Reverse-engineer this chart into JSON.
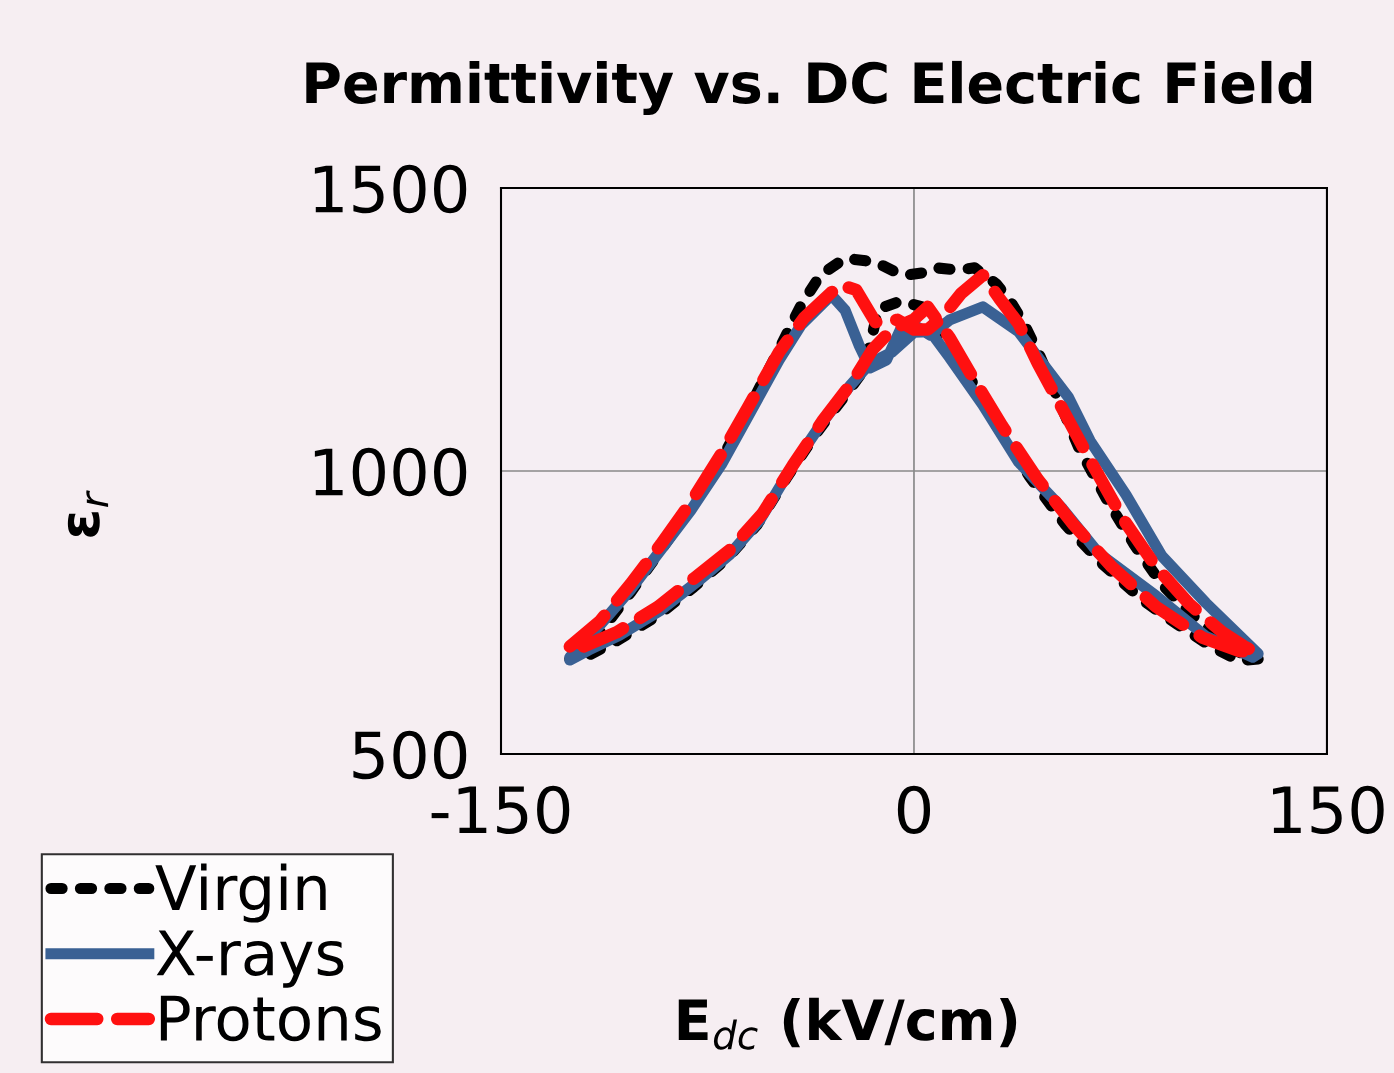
{
  "chart_data": {
    "type": "line",
    "title": "Permittivity vs. DC Electric Field",
    "xlabel": "E$_{dc}$ (kV/cm)",
    "ylabel": "ε$_{r}$",
    "xlim": [
      -150,
      150
    ],
    "xticks": [
      -150,
      0,
      150
    ],
    "ylim": [
      500,
      1500
    ],
    "yticks": [
      500,
      1000,
      1500
    ],
    "grid": true,
    "legend": "bottom left",
    "series": [
      {
        "name": "Virgin",
        "color": "#000000",
        "line_style": "dotted",
        "x": [
          -125,
          -114,
          -103,
          -92,
          -81,
          -70,
          -60,
          -49,
          -41,
          -34,
          -25,
          -14,
          -6,
          -3,
          3,
          8,
          16,
          22,
          30,
          35,
          40,
          46,
          53,
          60,
          70,
          80,
          90,
          100,
          110,
          118,
          125,
          118,
          108,
          96,
          83,
          68,
          55,
          42,
          30,
          22,
          15,
          8,
          3,
          -5,
          -13,
          -18,
          -24,
          -35,
          -46,
          -57,
          -68,
          -80,
          -93,
          -108,
          -120
        ],
        "values": [
          668,
          715,
          785,
          860,
          935,
          1020,
          1110,
          1215,
          1293,
          1346,
          1376,
          1369,
          1350,
          1346,
          1350,
          1359,
          1355,
          1359,
          1330,
          1300,
          1260,
          1200,
          1120,
          1040,
          950,
          870,
          800,
          750,
          710,
          680,
          668,
          665,
          690,
          728,
          772,
          838,
          905,
          990,
          1080,
          1150,
          1210,
          1250,
          1290,
          1300,
          1286,
          1180,
          1140,
          1070,
          990,
          905,
          845,
          795,
          745,
          700,
          670
        ]
      },
      {
        "name": "X-rays",
        "color": "#3a6194",
        "line_style": "solid",
        "x": [
          -125,
          -114,
          -103,
          -92,
          -81,
          -70,
          -60,
          -49,
          -41,
          -30,
          -25,
          -20,
          -16,
          -10,
          -5,
          0,
          6,
          13,
          25,
          38,
          56,
          64,
          77,
          90,
          106,
          125,
          123,
          106,
          88,
          67,
          54,
          38,
          25,
          13,
          6,
          0,
          -8,
          -16,
          -23,
          -34,
          -45,
          -56,
          -67,
          -78,
          -92,
          -107,
          -118,
          -125
        ],
        "values": [
          671,
          728,
          790,
          860,
          931,
          1011,
          1099,
          1196,
          1258,
          1311,
          1284,
          1223,
          1182,
          1196,
          1249,
          1258,
          1240,
          1267,
          1290,
          1246,
          1131,
          1053,
          958,
          850,
          767,
          677,
          671,
          708,
          779,
          855,
          933,
          1016,
          1117,
          1200,
          1246,
          1245,
          1210,
          1190,
          1152,
          1081,
          1002,
          913,
          852,
          807,
          754,
          710,
          684,
          666
        ]
      },
      {
        "name": "Protons",
        "color": "#ff1010",
        "line_style": "dashed",
        "x": [
          -125,
          -114,
          -103,
          -92,
          -81,
          -70,
          -60,
          -49,
          -40,
          -27,
          -21,
          -14,
          -6,
          0,
          5,
          10,
          17,
          25,
          31,
          38,
          45,
          55,
          65,
          76,
          88,
          100,
          112,
          120,
          124,
          118,
          105,
          88,
          72,
          58,
          45,
          32,
          22,
          13,
          5,
          0,
          -8,
          -15,
          -22,
          -33,
          -44,
          -55,
          -67,
          -80,
          -93,
          -108,
          -120
        ],
        "values": [
          690,
          735,
          800,
          870,
          945,
          1030,
          1115,
          1210,
          1270,
          1329,
          1320,
          1263,
          1267,
          1250,
          1250,
          1270,
          1313,
          1346,
          1305,
          1260,
          1190,
          1100,
          1010,
          915,
          830,
          765,
          715,
          690,
          680,
          682,
          705,
          760,
          830,
          905,
          985,
          1080,
          1160,
          1235,
          1290,
          1268,
          1250,
          1215,
          1160,
          1090,
          1010,
          925,
          860,
          810,
          760,
          715,
          690
        ]
      }
    ]
  }
}
